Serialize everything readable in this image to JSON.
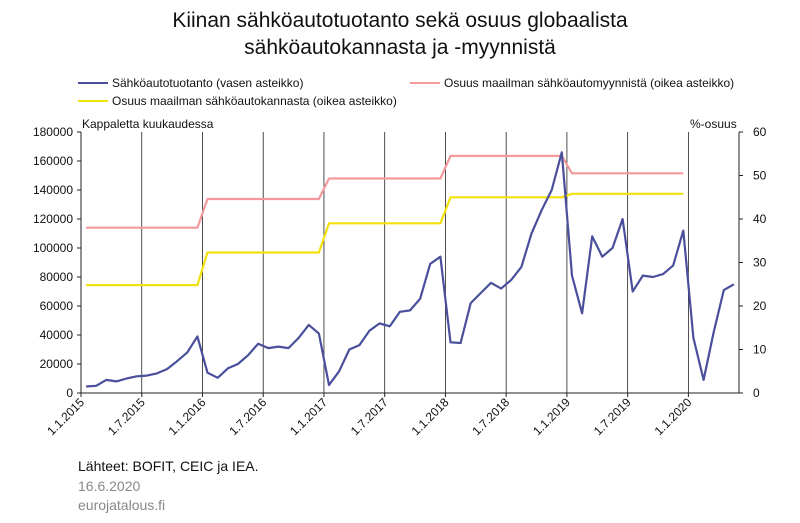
{
  "title_line1": "Kiinan sähköautotuotanto sekä osuus globaalista",
  "title_line2": "sähköautokannasta ja -myynnistä",
  "left_axis_note": "Kappaletta kuukaudessa",
  "right_axis_note": "%-osuus",
  "source": "Lähteet: BOFIT, CEIC ja IEA.",
  "date": "16.6.2020",
  "site": "eurojatalous.fi",
  "chart_data": {
    "type": "line",
    "title": "Kiinan sähköautotuotanto sekä osuus globaalista sähköautokannasta ja -myynnistä",
    "x_start": "2015-01",
    "x_tick_labels": [
      "1.1.2015",
      "1.7.2015",
      "1.1.2016",
      "1.7.2016",
      "1.1.2017",
      "1.7.2017",
      "1.1.2018",
      "1.7.2018",
      "1.1.2019",
      "1.7.2019",
      "1.1.2020"
    ],
    "y_left_ticks": [
      "0",
      "20000",
      "40000",
      "60000",
      "80000",
      "100000",
      "120000",
      "140000",
      "160000",
      "180000"
    ],
    "y_right_ticks": [
      "0",
      "10",
      "20",
      "30",
      "40",
      "50",
      "60"
    ],
    "ylim_left": [
      0,
      180000
    ],
    "ylim_right": [
      0,
      60
    ],
    "grid": "vertical",
    "series": [
      {
        "name": "Sähköautotuotanto (vasen asteikko)",
        "axis": "left",
        "color": "#4a4f9c",
        "values": [
          4500,
          5000,
          9000,
          8000,
          10000,
          11500,
          12000,
          13500,
          16500,
          22000,
          28000,
          39000,
          14000,
          10500,
          17000,
          20000,
          26000,
          34000,
          31000,
          32000,
          31000,
          38000,
          47000,
          41000,
          5500,
          15000,
          30000,
          33000,
          43000,
          48000,
          46000,
          56000,
          57000,
          65000,
          89000,
          94000,
          35000,
          34500,
          62000,
          69000,
          76000,
          72000,
          78000,
          87000,
          110000,
          126000,
          140000,
          166000,
          81000,
          55000,
          108000,
          94000,
          100000,
          120000,
          70000,
          81000,
          80000,
          82000,
          88000,
          112000,
          38000,
          9000,
          42000,
          71000,
          75000
        ]
      },
      {
        "name": "Osuus maailman sähköautomyynnistä (oikea asteikko)",
        "axis": "right",
        "color": "#f4999c",
        "values": [
          38,
          38,
          38,
          38,
          38,
          38,
          38,
          38,
          38,
          38,
          38,
          38,
          44.6,
          44.6,
          44.6,
          44.6,
          44.6,
          44.6,
          44.6,
          44.6,
          44.6,
          44.6,
          44.6,
          44.6,
          49.3,
          49.3,
          49.3,
          49.3,
          49.3,
          49.3,
          49.3,
          49.3,
          49.3,
          49.3,
          49.3,
          49.3,
          54.5,
          54.5,
          54.5,
          54.5,
          54.5,
          54.5,
          54.5,
          54.5,
          54.5,
          54.5,
          54.5,
          54.5,
          50.5,
          50.5,
          50.5,
          50.5,
          50.5,
          50.5,
          50.5,
          50.5,
          50.5,
          50.5,
          50.5,
          50.5
        ]
      },
      {
        "name": "Osuus maailman sähköautokannasta (oikea asteikko)",
        "axis": "right",
        "color": "#f2e10c",
        "values": [
          24.8,
          24.8,
          24.8,
          24.8,
          24.8,
          24.8,
          24.8,
          24.8,
          24.8,
          24.8,
          24.8,
          24.8,
          32.3,
          32.3,
          32.3,
          32.3,
          32.3,
          32.3,
          32.3,
          32.3,
          32.3,
          32.3,
          32.3,
          32.3,
          39,
          39,
          39,
          39,
          39,
          39,
          39,
          39,
          39,
          39,
          39,
          39,
          45,
          45,
          45,
          45,
          45,
          45,
          45,
          45,
          45,
          45,
          45,
          45,
          45.8,
          45.8,
          45.8,
          45.8,
          45.8,
          45.8,
          45.8,
          45.8,
          45.8,
          45.8,
          45.8,
          45.8
        ]
      }
    ]
  }
}
